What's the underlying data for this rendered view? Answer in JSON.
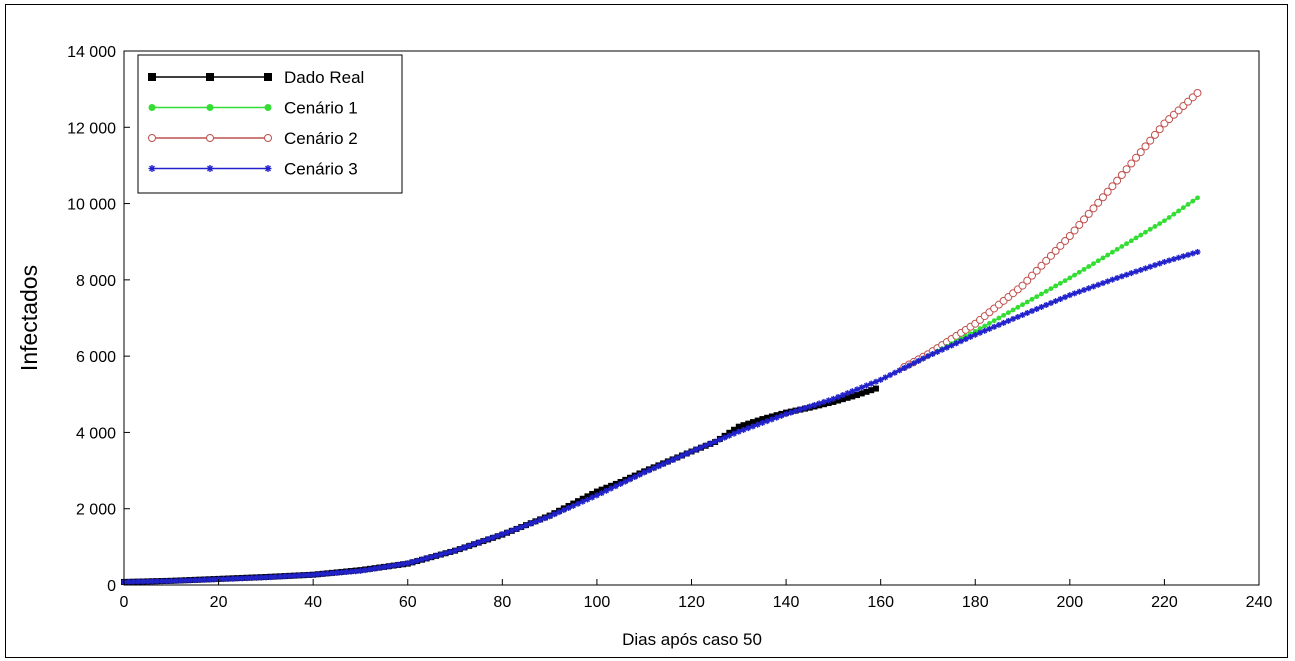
{
  "chart_data": {
    "type": "line",
    "xlabel": "Dias após caso 50",
    "ylabel": "Infectados",
    "xlim": [
      0,
      240
    ],
    "ylim": [
      0,
      14000
    ],
    "x_ticks": [
      0,
      20,
      40,
      60,
      80,
      100,
      120,
      140,
      160,
      180,
      200,
      220,
      240
    ],
    "y_ticks": [
      0,
      2000,
      4000,
      6000,
      8000,
      10000,
      12000,
      14000
    ],
    "x_tick_labels": [
      "0",
      "20",
      "40",
      "60",
      "80",
      "100",
      "120",
      "140",
      "160",
      "180",
      "200",
      "220",
      "240"
    ],
    "y_tick_labels": [
      "0",
      "2 000",
      "4 000",
      "6 000",
      "8 000",
      "10 000",
      "12 000",
      "14 000"
    ],
    "grid": false,
    "legend_position": "top-left",
    "series": [
      {
        "name": "Dado Real",
        "color": "#000000",
        "marker": "square",
        "x": [
          0,
          10,
          20,
          30,
          40,
          50,
          60,
          70,
          80,
          90,
          100,
          105,
          110,
          120,
          125,
          130,
          135,
          140,
          145,
          150,
          155,
          159
        ],
        "y": [
          80,
          110,
          160,
          210,
          270,
          390,
          560,
          900,
          1320,
          1820,
          2450,
          2700,
          2980,
          3500,
          3750,
          4150,
          4350,
          4520,
          4650,
          4800,
          4980,
          5150
        ]
      },
      {
        "name": "Cenário 1",
        "color": "#33dd33",
        "marker": "dot",
        "x": [
          0,
          10,
          20,
          30,
          40,
          50,
          60,
          70,
          80,
          90,
          100,
          110,
          120,
          130,
          140,
          150,
          160,
          170,
          180,
          190,
          200,
          210,
          220,
          227
        ],
        "y": [
          80,
          105,
          150,
          200,
          270,
          370,
          570,
          900,
          1330,
          1800,
          2350,
          2950,
          3500,
          4020,
          4480,
          4880,
          5380,
          6000,
          6650,
          7350,
          8050,
          8800,
          9550,
          10150
        ]
      },
      {
        "name": "Cenário 2",
        "color": "#c0504d",
        "marker": "circle",
        "x": [
          0,
          10,
          20,
          30,
          40,
          50,
          60,
          70,
          80,
          90,
          100,
          110,
          120,
          130,
          140,
          150,
          160,
          170,
          180,
          190,
          200,
          210,
          220,
          227
        ],
        "y": [
          80,
          105,
          150,
          200,
          270,
          370,
          570,
          900,
          1330,
          1800,
          2350,
          2950,
          3500,
          4020,
          4480,
          4880,
          5380,
          6050,
          6850,
          7850,
          9150,
          10600,
          12100,
          12900
        ]
      },
      {
        "name": "Cenário 3",
        "color": "#2222cc",
        "marker": "star",
        "x": [
          0,
          10,
          20,
          30,
          40,
          50,
          60,
          70,
          80,
          90,
          100,
          110,
          120,
          130,
          140,
          150,
          160,
          170,
          180,
          190,
          200,
          210,
          220,
          227
        ],
        "y": [
          80,
          105,
          150,
          200,
          270,
          370,
          570,
          900,
          1330,
          1800,
          2350,
          2950,
          3500,
          4020,
          4480,
          4880,
          5380,
          6000,
          6560,
          7080,
          7600,
          8050,
          8470,
          8730
        ]
      }
    ]
  }
}
